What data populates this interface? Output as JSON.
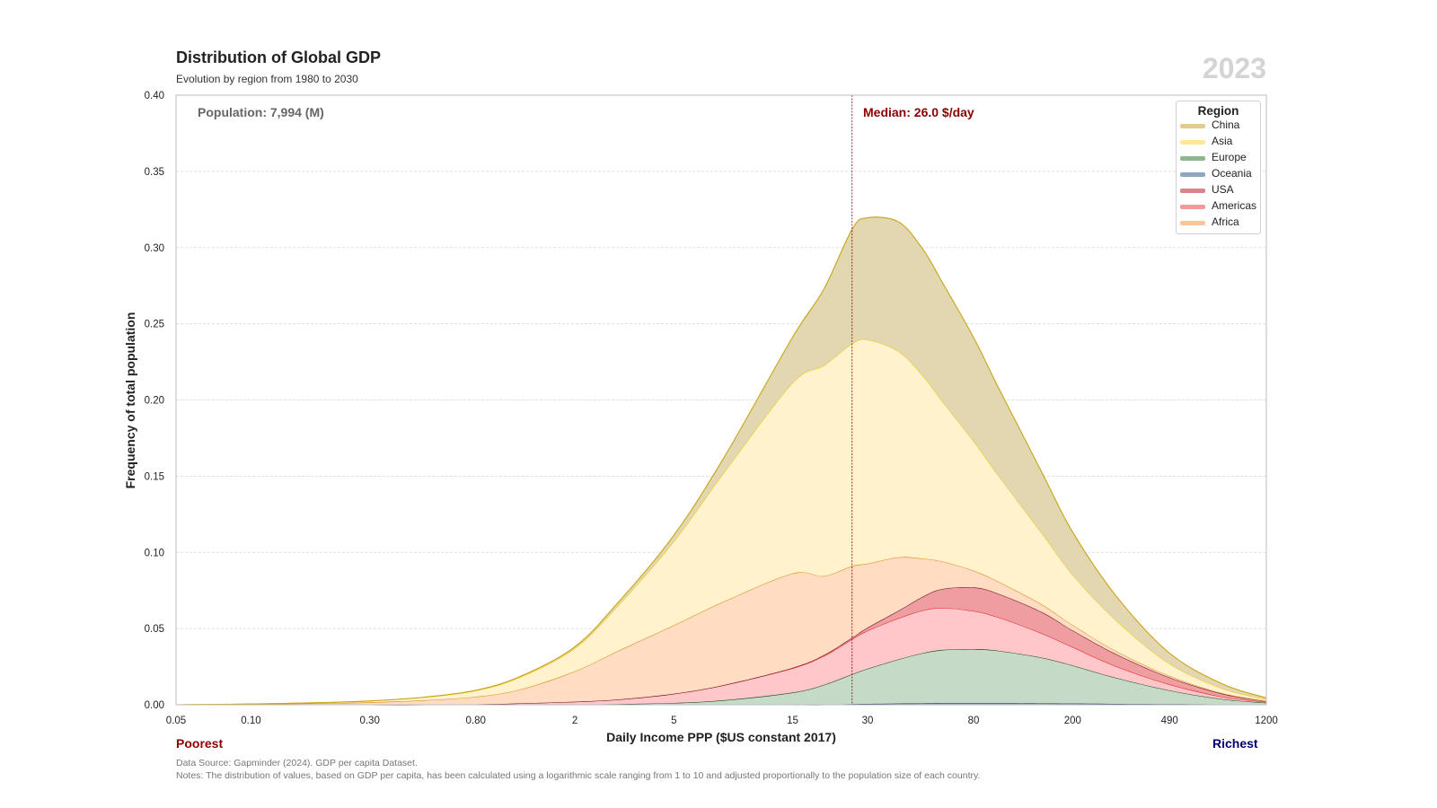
{
  "header": {
    "title": "Distribution of Global GDP",
    "subtitle": "Evolution by region from 1980 to 2030",
    "year": "2023"
  },
  "annotations": {
    "population": "Population: 7,994 (M)",
    "median": "Median: 26.0 $/day",
    "poorest": "Poorest",
    "richest": "Richest"
  },
  "footer": {
    "source": "Data Source: Gapminder (2024). GDP per capita Dataset.",
    "notes": "Notes: The distribution of values, based on GDP per capita, has been calculated using a logarithmic scale ranging from 1 to 10 and adjusted proportionally to the population size of each country."
  },
  "chart_data": {
    "type": "area",
    "stacked": true,
    "xscale": "log",
    "xlabel": "Daily Income PPP ($US constant 2017)",
    "ylabel": "Frequency of total population",
    "ylim": [
      0,
      0.4
    ],
    "xlim": [
      0.05,
      1200
    ],
    "median_x": 26.0,
    "xticks": [
      "0.05",
      "0.10",
      "0.30",
      "0.80",
      "2",
      "5",
      "15",
      "30",
      "80",
      "200",
      "490",
      "1200"
    ],
    "yticks": [
      "0.00",
      "0.05",
      "0.10",
      "0.15",
      "0.20",
      "0.25",
      "0.30",
      "0.35",
      "0.40"
    ],
    "grid": "horizontal",
    "legend": {
      "title": "Region",
      "position": "top-right"
    },
    "x": [
      0.05,
      0.1,
      0.2,
      0.3,
      0.5,
      0.8,
      1.2,
      2,
      3,
      5,
      8,
      15,
      20,
      26,
      30,
      40,
      50,
      60,
      80,
      100,
      150,
      200,
      300,
      490,
      800,
      1200
    ],
    "series": [
      {
        "name": "Oceania",
        "color": "#8fa6bf",
        "line": "#1f3a60",
        "values": [
          0,
          0,
          0,
          0,
          0,
          0,
          0,
          0,
          0,
          0,
          0,
          0,
          0,
          0.0005,
          0.0006,
          0.0008,
          0.0009,
          0.001,
          0.001,
          0.001,
          0.0009,
          0.0008,
          0.0006,
          0.0004,
          0.0002,
          0.0001
        ]
      },
      {
        "name": "Europe",
        "color": "#c5dbc8",
        "line": "#1f4a1f",
        "values": [
          0,
          0,
          0,
          0,
          0,
          0,
          0.0001,
          0.0002,
          0.0005,
          0.0012,
          0.003,
          0.008,
          0.013,
          0.0195,
          0.023,
          0.029,
          0.033,
          0.035,
          0.0355,
          0.0345,
          0.03,
          0.025,
          0.017,
          0.009,
          0.0035,
          0.0012
        ]
      },
      {
        "name": "Americas",
        "color": "#ffc7c9",
        "line": "#e8202a",
        "values": [
          0,
          0,
          0,
          0,
          0,
          0.0003,
          0.0008,
          0.0018,
          0.003,
          0.006,
          0.01,
          0.016,
          0.019,
          0.023,
          0.025,
          0.027,
          0.028,
          0.0275,
          0.025,
          0.022,
          0.016,
          0.012,
          0.0075,
          0.004,
          0.0015,
          0.0005
        ]
      },
      {
        "name": "USA",
        "color": "#ee9ea0",
        "line": "#6b0f1a",
        "values": [
          0,
          0,
          0,
          0,
          0,
          0,
          0,
          0,
          0,
          0,
          0,
          0.0002,
          0.0005,
          0.001,
          0.002,
          0.005,
          0.009,
          0.0125,
          0.0155,
          0.0155,
          0.014,
          0.011,
          0.008,
          0.0045,
          0.002,
          0.0006
        ]
      },
      {
        "name": "Africa",
        "color": "#ffdcc2",
        "line": "#e08a1e",
        "values": [
          0,
          0.0004,
          0.001,
          0.0016,
          0.003,
          0.005,
          0.009,
          0.02,
          0.032,
          0.045,
          0.055,
          0.062,
          0.052,
          0.047,
          0.042,
          0.035,
          0.025,
          0.018,
          0.011,
          0.008,
          0.005,
          0.0035,
          0.002,
          0.001,
          0.0004,
          0.0001
        ]
      },
      {
        "name": "Asia",
        "color": "#fff2cc",
        "line": "#f2c81a",
        "values": [
          0,
          0.0001,
          0.0005,
          0.0009,
          0.002,
          0.004,
          0.008,
          0.015,
          0.03,
          0.055,
          0.085,
          0.125,
          0.138,
          0.146,
          0.147,
          0.135,
          0.12,
          0.105,
          0.085,
          0.07,
          0.047,
          0.033,
          0.02,
          0.008,
          0.003,
          0.001
        ]
      },
      {
        "name": "China",
        "color": "#e2d7b0",
        "line": "#c9a417",
        "values": [
          0,
          0,
          0,
          0,
          0,
          0.0002,
          0.0005,
          0.001,
          0.002,
          0.004,
          0.01,
          0.03,
          0.05,
          0.075,
          0.08,
          0.085,
          0.083,
          0.078,
          0.068,
          0.058,
          0.04,
          0.028,
          0.016,
          0.007,
          0.003,
          0.001
        ]
      }
    ],
    "legend_order": [
      "China",
      "Asia",
      "Europe",
      "Oceania",
      "USA",
      "Americas",
      "Africa"
    ]
  }
}
